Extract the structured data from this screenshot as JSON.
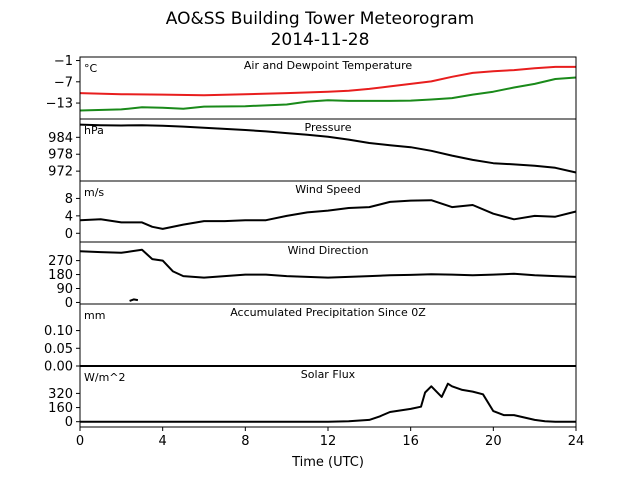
{
  "figure": {
    "title_line1": "AO&SS Building Tower Meteorogram",
    "title_line2": "2014-11-28",
    "xlabel": "Time (UTC)"
  },
  "colors": {
    "temperature": "#e81e1e",
    "dewpoint": "#1a8a1a",
    "other": "#000000"
  },
  "chart_data": {
    "type": "line",
    "x_unit": "hours UTC",
    "xlim": [
      0,
      24
    ],
    "xticks": [
      0,
      4,
      8,
      12,
      16,
      20,
      24
    ],
    "panels": [
      {
        "id": "temp",
        "title": "Air and Dewpoint Temperature",
        "unit": "°C",
        "ylim": [
          -17.5,
          0
        ],
        "yticks": [
          -1,
          -7,
          -13
        ],
        "ytick_labels": [
          "−1",
          "−7",
          "−13"
        ],
        "series": [
          {
            "color_key": "temperature",
            "x": [
              0,
              2,
              4,
              6,
              8,
              10,
              12,
              13,
              14,
              15,
              16,
              17,
              18,
              19,
              20,
              21,
              22,
              23,
              24
            ],
            "y": [
              -10.2,
              -10.5,
              -10.6,
              -10.8,
              -10.5,
              -10.2,
              -9.8,
              -9.5,
              -9.0,
              -8.3,
              -7.6,
              -6.9,
              -5.6,
              -4.5,
              -4.0,
              -3.7,
              -3.2,
              -2.8,
              -2.8
            ]
          },
          {
            "color_key": "dewpoint",
            "x": [
              0,
              2,
              3,
              4,
              5,
              6,
              8,
              10,
              11,
              12,
              13,
              14,
              15,
              16,
              17,
              18,
              19,
              20,
              21,
              22,
              23,
              24
            ],
            "y": [
              -15.1,
              -14.8,
              -14.2,
              -14.3,
              -14.6,
              -14.0,
              -13.9,
              -13.4,
              -12.6,
              -12.2,
              -12.4,
              -12.4,
              -12.4,
              -12.3,
              -12.0,
              -11.6,
              -10.6,
              -9.8,
              -8.6,
              -7.6,
              -6.2,
              -5.8
            ]
          }
        ]
      },
      {
        "id": "pressure",
        "title": "Pressure",
        "unit": "hPa",
        "ylim": [
          968.5,
          990.5
        ],
        "yticks": [
          984,
          978,
          972
        ],
        "ytick_labels": [
          "984",
          "978",
          "972"
        ],
        "series": [
          {
            "color_key": "other",
            "x": [
              0,
              1,
              2,
              3,
              4,
              5,
              6,
              7,
              8,
              9,
              10,
              11,
              12,
              13,
              14,
              15,
              16,
              17,
              18,
              19,
              20,
              21,
              22,
              23,
              24
            ],
            "y": [
              988.5,
              988.3,
              988.2,
              988.3,
              988.1,
              987.8,
              987.4,
              987.0,
              986.6,
              986.1,
              985.5,
              984.9,
              984.2,
              983.2,
              982.0,
              981.2,
              980.5,
              979.2,
              977.5,
              976.0,
              974.8,
              974.4,
              973.9,
              973.2,
              971.5
            ]
          }
        ]
      },
      {
        "id": "wind_speed",
        "title": "Wind Speed",
        "unit": "m/s",
        "ylim": [
          -2,
          12
        ],
        "yticks": [
          8,
          4,
          0
        ],
        "ytick_labels": [
          "8",
          "4",
          "0"
        ],
        "series": [
          {
            "color_key": "other",
            "x": [
              0,
              1,
              2,
              3,
              3.5,
              4,
              5,
              6,
              7,
              8,
              9,
              10,
              11,
              12,
              13,
              14,
              15,
              16,
              17,
              18,
              19,
              20,
              21,
              22,
              23,
              24
            ],
            "y": [
              3.0,
              3.2,
              2.5,
              2.5,
              1.5,
              1.0,
              2.0,
              2.8,
              2.8,
              3.0,
              3.0,
              4.0,
              4.8,
              5.2,
              5.8,
              6.0,
              7.2,
              7.5,
              7.6,
              6.0,
              6.5,
              4.5,
              3.2,
              4.0,
              3.8,
              5.0
            ]
          }
        ]
      },
      {
        "id": "wind_dir",
        "title": "Wind Direction",
        "unit": "",
        "ylim": [
          -10,
          390
        ],
        "yticks": [
          270,
          180,
          90,
          0
        ],
        "ytick_labels": [
          "270",
          "180",
          "90",
          "0"
        ],
        "series": [
          {
            "color_key": "other",
            "x": [
              0,
              1,
              2,
              2.5,
              3,
              3.5,
              4,
              4.5,
              5,
              6,
              7,
              8,
              9,
              10,
              11,
              12,
              13,
              14,
              15,
              16,
              17,
              18,
              19,
              20,
              21,
              22,
              23,
              24
            ],
            "y": [
              330,
              325,
              320,
              330,
              340,
              280,
              270,
              200,
              170,
              160,
              170,
              180,
              180,
              170,
              165,
              160,
              165,
              170,
              175,
              178,
              182,
              180,
              176,
              180,
              185,
              175,
              170,
              165
            ]
          },
          {
            "color_key": "other",
            "x": [
              2.4,
              2.6,
              2.8
            ],
            "y": [
              10,
              20,
              15
            ]
          }
        ]
      },
      {
        "id": "precip",
        "title": "Accumulated Precipitation Since 0Z",
        "unit": "mm",
        "ylim": [
          0,
          0.175
        ],
        "yticks": [
          0.1,
          0.05,
          0.0
        ],
        "ytick_labels": [
          "0.10",
          "0.05",
          "0.00"
        ],
        "series": [
          {
            "color_key": "other",
            "x": [
              0,
              24
            ],
            "y": [
              0,
              0
            ]
          }
        ]
      },
      {
        "id": "solar",
        "title": "Solar Flux",
        "unit": "W/m^2",
        "ylim": [
          -60,
          630
        ],
        "yticks": [
          320,
          160,
          0
        ],
        "ytick_labels": [
          "320",
          "160",
          "0"
        ],
        "series": [
          {
            "color_key": "other",
            "x": [
              0,
              12,
              13,
              14,
              14.5,
              15,
              16,
              16.5,
              16.7,
              17,
              17.5,
              17.8,
              18,
              18.5,
              19,
              19.5,
              20,
              20.5,
              21,
              22,
              22.5,
              23,
              24
            ],
            "y": [
              0,
              0,
              5,
              20,
              60,
              110,
              145,
              170,
              330,
              400,
              280,
              430,
              400,
              360,
              340,
              310,
              120,
              75,
              75,
              20,
              5,
              0,
              0
            ]
          }
        ]
      }
    ]
  }
}
